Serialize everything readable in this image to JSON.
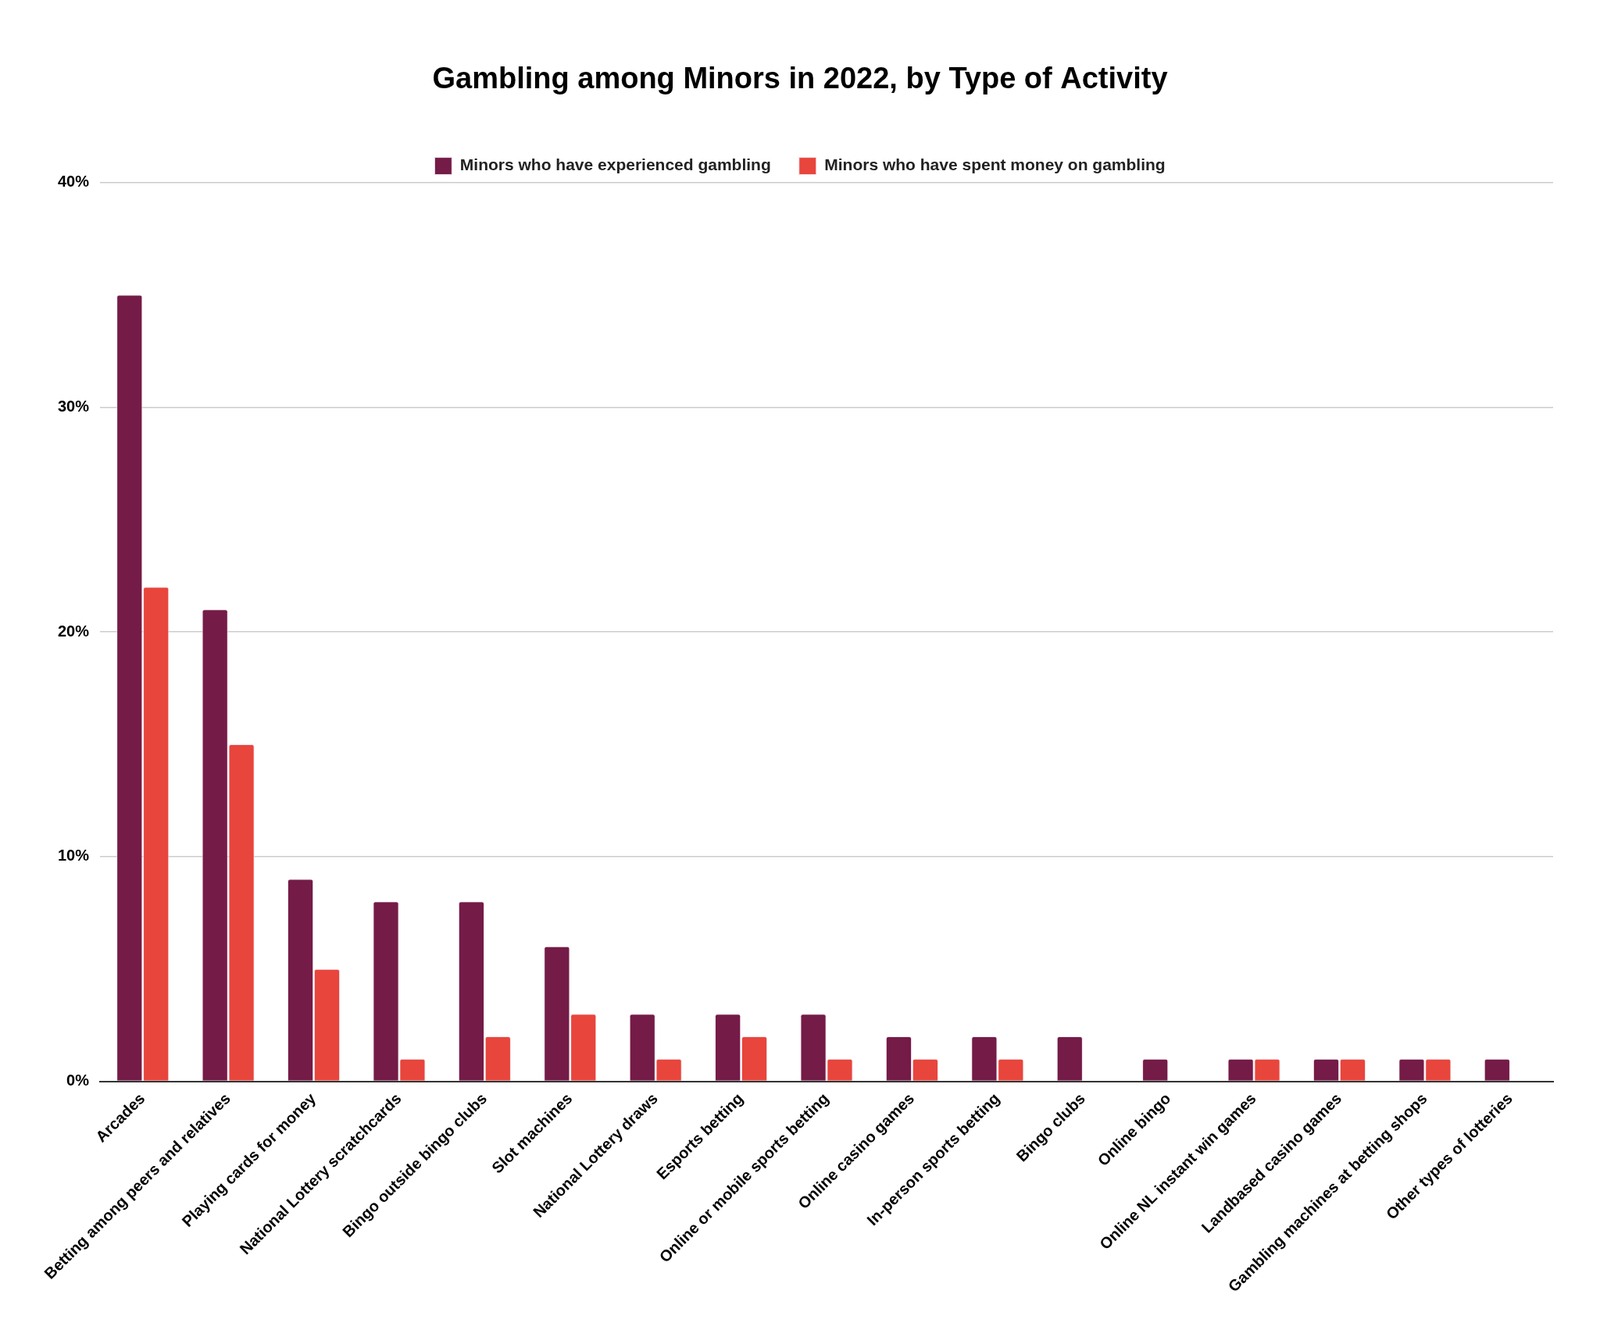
{
  "chart_data": {
    "type": "bar",
    "title": "Gambling among Minors in 2022, by Type of Activity",
    "categories": [
      "Arcades",
      "Betting among peers and relatives",
      "Playing cards for money",
      "National Lottery scratchcards",
      "Bingo outside bingo clubs",
      "Slot machines",
      "National Lottery draws",
      "Esports betting",
      "Online or mobile sports betting",
      "Online casino games",
      "In-person sports betting",
      "Bingo clubs",
      "Online bingo",
      "Online NL instant win games",
      "Landbased casino games",
      "Gambling machines at betting shops",
      "Other types of lotteries"
    ],
    "series": [
      {
        "name": "Minors who have experienced gambling",
        "color": "#741b47",
        "values": [
          35,
          21,
          9,
          8,
          8,
          6,
          3,
          3,
          3,
          2,
          2,
          2,
          1,
          1,
          1,
          1,
          1
        ]
      },
      {
        "name": "Minors who have spent money on gambling",
        "color": "#e8453c",
        "values": [
          22,
          15,
          5,
          1,
          2,
          3,
          1,
          2,
          1,
          1,
          1,
          0,
          0,
          1,
          1,
          1,
          0
        ]
      }
    ],
    "ylim": [
      0,
      40
    ],
    "yticks": [
      {
        "value": 0,
        "label": "0%"
      },
      {
        "value": 10,
        "label": "10%"
      },
      {
        "value": 20,
        "label": "20%"
      },
      {
        "value": 30,
        "label": "30%"
      },
      {
        "value": 40,
        "label": "40%"
      }
    ],
    "grid": true,
    "legend": "top"
  }
}
